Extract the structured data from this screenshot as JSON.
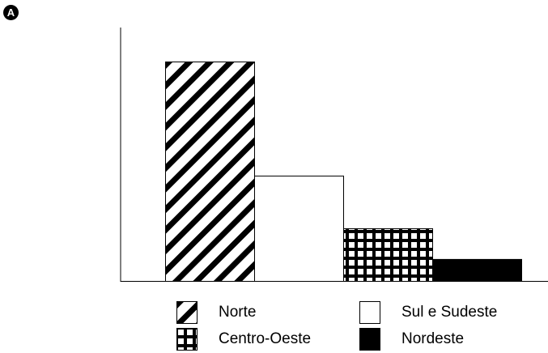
{
  "panel_label": "A",
  "chart_data": {
    "type": "bar",
    "title": "",
    "xlabel": "",
    "ylabel": "",
    "categories": [
      "Norte",
      "Sul e Sudeste",
      "Centro-Oeste",
      "Nordeste"
    ],
    "values": [
      100,
      48,
      24,
      10
    ],
    "ylim": [
      0,
      100
    ],
    "grid": false,
    "legend_placement": "bottom",
    "colors": {
      "Norte": "diagonal-hatch",
      "Sul e Sudeste": "#ffffff",
      "Centro-Oeste": "grid-hatch",
      "Nordeste": "#000000"
    }
  },
  "legend": [
    {
      "label": "Norte",
      "pattern": "diagonal-hatch"
    },
    {
      "label": "Sul e Sudeste",
      "pattern": "white"
    },
    {
      "label": "Centro-Oeste",
      "pattern": "grid-hatch"
    },
    {
      "label": "Nordeste",
      "pattern": "solid-black"
    }
  ]
}
